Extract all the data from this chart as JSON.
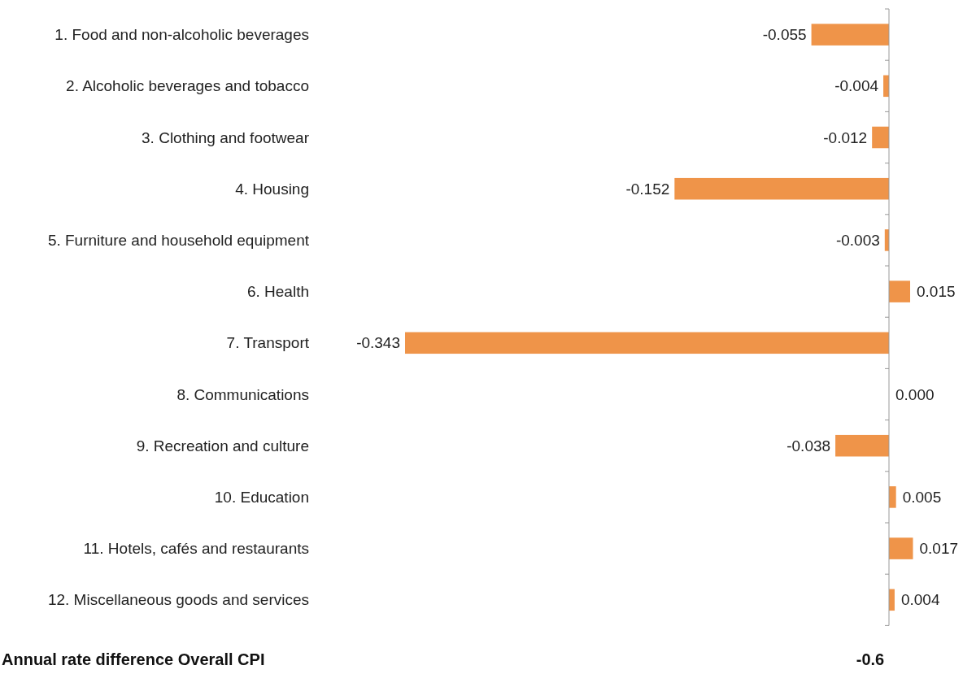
{
  "chart_data": {
    "type": "bar",
    "orientation": "horizontal",
    "categories": [
      "1. Food and non-alcoholic beverages",
      "2. Alcoholic beverages and tobacco",
      "3. Clothing and footwear",
      "4. Housing",
      "5. Furniture and household equipment",
      "6. Health",
      "7. Transport",
      "8. Communications",
      "9. Recreation and culture",
      "10. Education",
      "11. Hotels, cafés and restaurants",
      "12. Miscellaneous goods and services"
    ],
    "values": [
      -0.055,
      -0.004,
      -0.012,
      -0.152,
      -0.003,
      0.015,
      -0.343,
      0.0,
      -0.038,
      0.005,
      0.017,
      0.004
    ],
    "value_labels": [
      "-0.055",
      "-0.004",
      "-0.012",
      "-0.152",
      "-0.003",
      "0.015",
      "-0.343",
      "0.000",
      "-0.038",
      "0.005",
      "0.017",
      "0.004"
    ],
    "color": "#ef9449",
    "annotations": [
      "Annual rate difference Overall CPI",
      "-0.6"
    ]
  }
}
